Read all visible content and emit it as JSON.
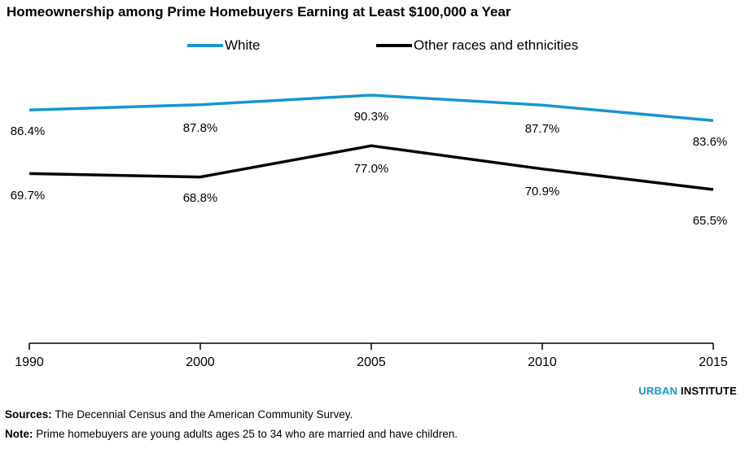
{
  "title": "Homeownership among Prime Homebuyers Earning at Least $100,000 a Year",
  "colors": {
    "white_series": "#1696d2",
    "other_series": "#000000",
    "axis": "#000000"
  },
  "chart_data": {
    "type": "line",
    "title": "Homeownership among Prime Homebuyers Earning at Least $100,000 a Year",
    "x": [
      "1990",
      "2000",
      "2005",
      "2010",
      "2015"
    ],
    "ylim": [
      0,
      100
    ],
    "grid": false,
    "legend_position": "top-center",
    "series": [
      {
        "name": "White",
        "color": "#1696d2",
        "values": [
          86.4,
          87.8,
          90.3,
          87.7,
          83.6
        ],
        "labels": [
          "86.4%",
          "87.8%",
          "90.3%",
          "87.7%",
          "83.6%"
        ]
      },
      {
        "name": "Other races and ethnicities",
        "color": "#000000",
        "values": [
          69.7,
          68.8,
          77.0,
          70.9,
          65.5
        ],
        "labels": [
          "69.7%",
          "68.8%",
          "77.0%",
          "70.9%",
          "65.5%"
        ]
      }
    ]
  },
  "brand": {
    "part1": "URBAN",
    "part2": " INSTITUTE"
  },
  "sources": {
    "label": "Sources:",
    "text": " The Decennial Census and the American Community Survey."
  },
  "note": {
    "label": "Note:",
    "text": " Prime homebuyers are young adults ages 25 to 34 who are married and have children."
  }
}
